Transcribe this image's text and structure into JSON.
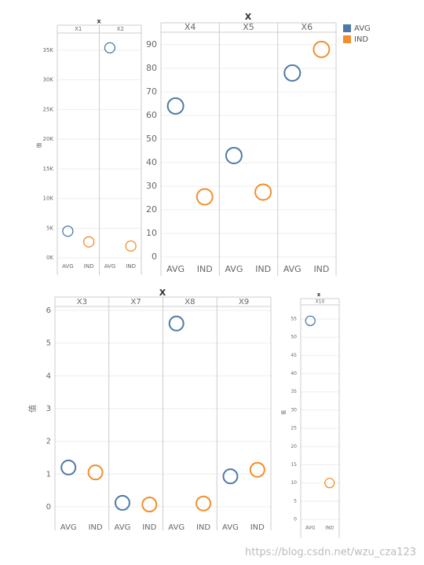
{
  "legend": {
    "items": [
      {
        "name": "AVG",
        "color": "#4e79a7"
      },
      {
        "name": "IND",
        "color": "#f28e2b"
      }
    ]
  },
  "watermark": "https://blog.csdn.net/wzu_cza123",
  "chart_data": [
    {
      "type": "dot",
      "title": "x",
      "ylabel": "值",
      "categories": [
        "AVG",
        "IND"
      ],
      "colors": [
        "#4e79a7",
        "#f28e2b"
      ],
      "series": [
        {
          "name": "X1",
          "values": [
            4500,
            2700
          ]
        },
        {
          "name": "X2",
          "values": [
            35400,
            2000
          ]
        }
      ],
      "ylim": [
        -500,
        37900
      ],
      "yticks": [
        {
          "value": 0,
          "label": "0K"
        },
        {
          "value": 5000,
          "label": "5K"
        },
        {
          "value": 10000,
          "label": "10K"
        },
        {
          "value": 15000,
          "label": "15K"
        },
        {
          "value": 20000,
          "label": "20K"
        },
        {
          "value": 25000,
          "label": "25K"
        },
        {
          "value": 30000,
          "label": "30K"
        },
        {
          "value": 35000,
          "label": "35K"
        }
      ],
      "grid": true
    },
    {
      "type": "dot",
      "title": "X",
      "categories": [
        "AVG",
        "IND"
      ],
      "colors": [
        "#4e79a7",
        "#f28e2b"
      ],
      "series": [
        {
          "name": "X4",
          "values": [
            64,
            25.5
          ]
        },
        {
          "name": "X5",
          "values": [
            43,
            27.5
          ]
        },
        {
          "name": "X6",
          "values": [
            78,
            88
          ]
        }
      ],
      "ylim": [
        -2,
        95.3
      ],
      "yticks": [
        0,
        10,
        20,
        30,
        40,
        50,
        60,
        70,
        80,
        90
      ],
      "grid": true
    },
    {
      "type": "dot",
      "title": "X",
      "ylabel": "值",
      "categories": [
        "AVG",
        "IND"
      ],
      "colors": [
        "#4e79a7",
        "#f28e2b"
      ],
      "series": [
        {
          "name": "X3",
          "values": [
            1.2,
            1.05
          ]
        },
        {
          "name": "X7",
          "values": [
            0.12,
            0.07
          ]
        },
        {
          "name": "X8",
          "values": [
            5.6,
            0.1
          ]
        },
        {
          "name": "X9",
          "values": [
            0.93,
            1.13
          ]
        }
      ],
      "ylim": [
        -0.29,
        6.12
      ],
      "yticks": [
        0,
        1,
        2,
        3,
        4,
        5,
        6
      ],
      "grid": true
    },
    {
      "type": "dot",
      "title": "x",
      "ylabel": "值",
      "categories": [
        "AVG",
        "IND"
      ],
      "colors": [
        "#4e79a7",
        "#f28e2b"
      ],
      "series": [
        {
          "name": "X10",
          "values": [
            54.5,
            10
          ]
        }
      ],
      "ylim": [
        -1.29,
        58.87
      ],
      "yticks": [
        0,
        5,
        10,
        15,
        20,
        25,
        30,
        35,
        40,
        45,
        50,
        55
      ],
      "grid": true
    }
  ]
}
